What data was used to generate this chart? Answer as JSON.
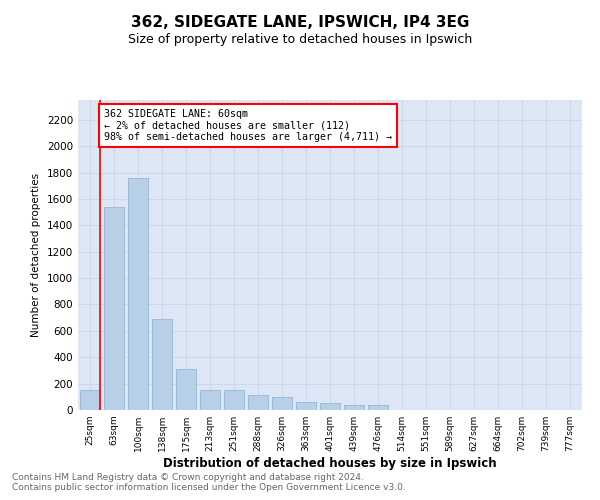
{
  "title": "362, SIDEGATE LANE, IPSWICH, IP4 3EG",
  "subtitle": "Size of property relative to detached houses in Ipswich",
  "xlabel": "Distribution of detached houses by size in Ipswich",
  "ylabel": "Number of detached properties",
  "footnote1": "Contains HM Land Registry data © Crown copyright and database right 2024.",
  "footnote2": "Contains public sector information licensed under the Open Government Licence v3.0.",
  "categories": [
    "25sqm",
    "63sqm",
    "100sqm",
    "138sqm",
    "175sqm",
    "213sqm",
    "251sqm",
    "288sqm",
    "326sqm",
    "363sqm",
    "401sqm",
    "439sqm",
    "476sqm",
    "514sqm",
    "551sqm",
    "589sqm",
    "627sqm",
    "664sqm",
    "702sqm",
    "739sqm",
    "777sqm"
  ],
  "values": [
    150,
    1540,
    1760,
    690,
    310,
    150,
    155,
    110,
    100,
    60,
    55,
    40,
    40,
    0,
    0,
    0,
    0,
    0,
    0,
    0,
    0
  ],
  "bar_color": "#b8cfe8",
  "bar_edge_color": "#8aafd4",
  "annotation_text_line1": "362 SIDEGATE LANE: 60sqm",
  "annotation_text_line2": "← 2% of detached houses are smaller (112)",
  "annotation_text_line3": "98% of semi-detached houses are larger (4,711) →",
  "ann_box_color": "white",
  "ann_edge_color": "red",
  "ylim": [
    0,
    2350
  ],
  "yticks": [
    0,
    200,
    400,
    600,
    800,
    1000,
    1200,
    1400,
    1600,
    1800,
    2000,
    2200
  ],
  "grid_color": "#c8d4e8",
  "background_color": "#dce6f5",
  "red_line_x": 0.425,
  "title_fontsize": 11,
  "subtitle_fontsize": 9,
  "footnote_fontsize": 6.5
}
